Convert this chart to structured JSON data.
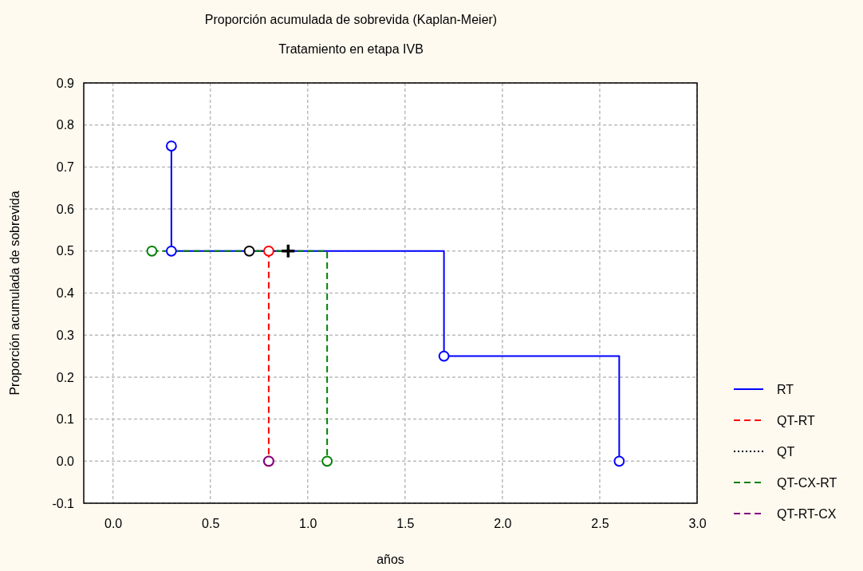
{
  "chart_data": {
    "type": "step",
    "title": "Proporción acumulada de sobrevida (Kaplan-Meier)",
    "subtitle": "Tratamiento en etapa IVB",
    "xlabel": "años",
    "ylabel": "Proporción acumulada de sobrevida",
    "xlim": [
      -0.15,
      3.0
    ],
    "xticks": [
      {
        "value": 0,
        "label": "0.0"
      },
      0.5,
      {
        "value": 1,
        "label": "1.0"
      },
      1.5,
      {
        "value": 2,
        "label": "2.0"
      },
      2.5,
      {
        "value": 3,
        "label": "3.0"
      }
    ],
    "ylim": [
      -0.1,
      0.9
    ],
    "yticks": [
      -0.1,
      {
        "value": 0,
        "label": "0.0"
      },
      0.1,
      0.2,
      0.3,
      0.4,
      0.5,
      0.6,
      0.7,
      0.8,
      0.9
    ],
    "grid": true,
    "legend": "right",
    "marker": "circle",
    "series": [
      {
        "name": "RT",
        "color": "#0000ff",
        "line_style": "solid",
        "x": [
          0.3,
          0.3,
          1.7,
          2.6
        ],
        "values": [
          0.75,
          0.5,
          0.25,
          0
        ]
      },
      {
        "name": "QT-RT",
        "color": "#ff0000",
        "line_style": "dashed",
        "x": [
          0.8,
          0.8
        ],
        "values": [
          0.5,
          0
        ]
      },
      {
        "name": "QT",
        "color": "#000000",
        "line_style": "dotted",
        "marker": "none",
        "x": [
          0.7,
          0.9
        ],
        "values": [
          0.5,
          0.5
        ]
      },
      {
        "type": "scatter",
        "color": "#000000",
        "x": [
          0.7
        ],
        "values": [
          0.5
        ]
      },
      {
        "name": "QT-CX-RT",
        "color": "#008000",
        "line_style": "dashed",
        "x": [
          0.2,
          1.1
        ],
        "values": [
          0.5,
          0
        ]
      },
      {
        "name": "QT-RT-CX",
        "color": "#800080",
        "line_style": "dashed",
        "type": "scatter",
        "x": [
          0.8
        ],
        "values": [
          0
        ]
      },
      {
        "type": "scatter",
        "color": "#000000",
        "marker": "cross",
        "x": [
          0.9
        ],
        "values": [
          0.5
        ]
      }
    ]
  }
}
